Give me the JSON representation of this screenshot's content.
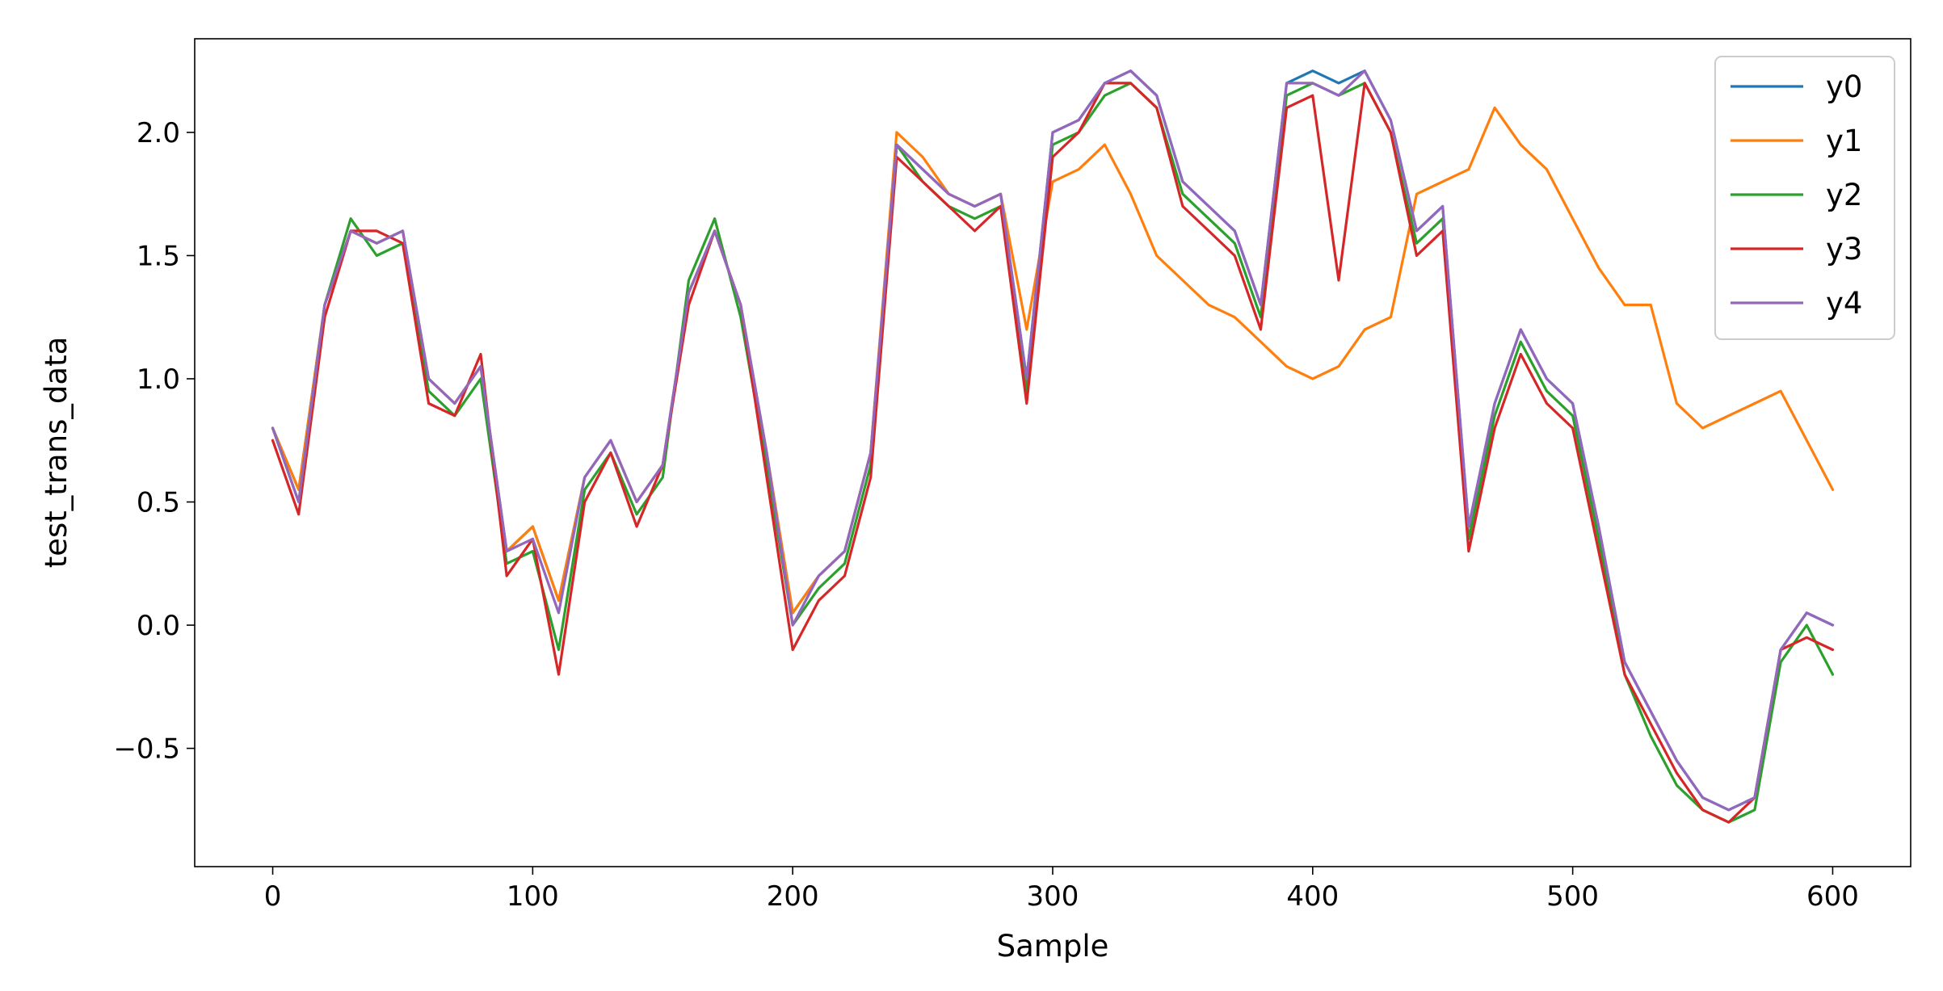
{
  "chart_data": {
    "type": "line",
    "title": "",
    "xlabel": "Sample",
    "ylabel": "test_trans_data",
    "xlim": [
      -30,
      630
    ],
    "ylim": [
      -0.98,
      2.38
    ],
    "xticks": [
      0,
      100,
      200,
      300,
      400,
      500,
      600
    ],
    "xtick_labels": [
      "0",
      "100",
      "200",
      "300",
      "400",
      "500",
      "600"
    ],
    "yticks": [
      -0.5,
      0.0,
      0.5,
      1.0,
      1.5,
      2.0
    ],
    "ytick_labels": [
      "−0.5",
      "0.0",
      "0.5",
      "1.0",
      "1.5",
      "2.0"
    ],
    "legend_position": "top-right",
    "grid": false,
    "series": [
      {
        "name": "y0",
        "color": "#1f77b4",
        "x": [
          0,
          10,
          20,
          30,
          40,
          50,
          60,
          70,
          80,
          90,
          100,
          110,
          120,
          130,
          140,
          150,
          160,
          170,
          180,
          190,
          200,
          210,
          220,
          230,
          240,
          250,
          260,
          270,
          280,
          290,
          300,
          310,
          320,
          330,
          340,
          350,
          360,
          370,
          380,
          390,
          400,
          410,
          420,
          430,
          440,
          450,
          460,
          470,
          480,
          490,
          500,
          510,
          520,
          530,
          540,
          550,
          560,
          570,
          580,
          590,
          600
        ],
        "y": [
          0.8,
          0.55,
          1.3,
          1.6,
          1.55,
          1.6,
          1.0,
          0.9,
          1.05,
          0.3,
          0.4,
          0.1,
          0.6,
          0.75,
          0.5,
          0.65,
          1.35,
          1.6,
          1.3,
          0.7,
          0.05,
          0.2,
          0.3,
          0.7,
          1.95,
          1.85,
          1.75,
          1.7,
          1.75,
          1.0,
          2.0,
          2.05,
          2.2,
          2.25,
          2.15,
          1.8,
          1.7,
          1.6,
          1.3,
          2.2,
          2.25,
          2.2,
          2.25,
          2.05,
          1.6,
          1.7,
          0.4,
          0.9,
          1.2,
          1.0,
          0.9,
          0.4,
          -0.15,
          -0.35,
          -0.55,
          -0.7,
          -0.75,
          -0.7,
          -0.1,
          0.05,
          0.0
        ]
      },
      {
        "name": "y1",
        "color": "#ff7f0e",
        "x": [
          0,
          10,
          20,
          30,
          40,
          50,
          60,
          70,
          80,
          90,
          100,
          110,
          120,
          130,
          140,
          150,
          160,
          170,
          180,
          190,
          200,
          210,
          220,
          230,
          240,
          250,
          260,
          270,
          280,
          290,
          300,
          310,
          320,
          330,
          340,
          350,
          360,
          370,
          380,
          390,
          400,
          410,
          420,
          430,
          440,
          450,
          460,
          470,
          480,
          490,
          500,
          510,
          520,
          530,
          540,
          550,
          560,
          570,
          580,
          590,
          600
        ],
        "y": [
          0.8,
          0.55,
          1.3,
          1.6,
          1.55,
          1.6,
          1.0,
          0.9,
          1.05,
          0.3,
          0.4,
          0.1,
          0.6,
          0.75,
          0.5,
          0.65,
          1.35,
          1.6,
          1.3,
          0.7,
          0.05,
          0.2,
          0.3,
          0.7,
          2.0,
          1.9,
          1.75,
          1.7,
          1.75,
          1.2,
          1.8,
          1.85,
          1.95,
          1.75,
          1.5,
          1.4,
          1.3,
          1.25,
          1.15,
          1.05,
          1.0,
          1.05,
          1.2,
          1.25,
          1.75,
          1.8,
          1.85,
          2.1,
          1.95,
          1.85,
          1.65,
          1.45,
          1.3,
          1.3,
          0.9,
          0.8,
          0.85,
          0.9,
          0.95,
          0.75,
          0.55
        ]
      },
      {
        "name": "y2",
        "color": "#2ca02c",
        "x": [
          0,
          10,
          20,
          30,
          40,
          50,
          60,
          70,
          80,
          90,
          100,
          110,
          120,
          130,
          140,
          150,
          160,
          170,
          180,
          190,
          200,
          210,
          220,
          230,
          240,
          250,
          260,
          270,
          280,
          290,
          300,
          310,
          320,
          330,
          340,
          350,
          360,
          370,
          380,
          390,
          400,
          410,
          420,
          430,
          440,
          450,
          460,
          470,
          480,
          490,
          500,
          510,
          520,
          530,
          540,
          550,
          560,
          570,
          580,
          590,
          600
        ],
        "y": [
          0.8,
          0.5,
          1.3,
          1.65,
          1.5,
          1.55,
          0.95,
          0.85,
          1.0,
          0.25,
          0.3,
          -0.1,
          0.55,
          0.7,
          0.45,
          0.6,
          1.4,
          1.65,
          1.25,
          0.65,
          0.0,
          0.15,
          0.25,
          0.65,
          1.95,
          1.8,
          1.7,
          1.65,
          1.7,
          0.95,
          1.95,
          2.0,
          2.15,
          2.2,
          2.1,
          1.75,
          1.65,
          1.55,
          1.25,
          2.15,
          2.2,
          2.15,
          2.2,
          2.0,
          1.55,
          1.65,
          0.35,
          0.85,
          1.15,
          0.95,
          0.85,
          0.35,
          -0.2,
          -0.45,
          -0.65,
          -0.75,
          -0.8,
          -0.75,
          -0.15,
          0.0,
          -0.2
        ]
      },
      {
        "name": "y3",
        "color": "#d62728",
        "x": [
          0,
          10,
          20,
          30,
          40,
          50,
          60,
          70,
          80,
          90,
          100,
          110,
          120,
          130,
          140,
          150,
          160,
          170,
          180,
          190,
          200,
          210,
          220,
          230,
          240,
          250,
          260,
          270,
          280,
          290,
          300,
          310,
          320,
          330,
          340,
          350,
          360,
          370,
          380,
          390,
          400,
          410,
          420,
          430,
          440,
          450,
          460,
          470,
          480,
          490,
          500,
          510,
          520,
          530,
          540,
          550,
          560,
          570,
          580,
          590,
          600
        ],
        "y": [
          0.75,
          0.45,
          1.25,
          1.6,
          1.6,
          1.55,
          0.9,
          0.85,
          1.1,
          0.2,
          0.35,
          -0.2,
          0.5,
          0.7,
          0.4,
          0.65,
          1.3,
          1.6,
          1.3,
          0.6,
          -0.1,
          0.1,
          0.2,
          0.6,
          1.9,
          1.8,
          1.7,
          1.6,
          1.7,
          0.9,
          1.9,
          2.0,
          2.2,
          2.2,
          2.1,
          1.7,
          1.6,
          1.5,
          1.2,
          2.1,
          2.15,
          1.4,
          2.2,
          2.0,
          1.5,
          1.6,
          0.3,
          0.8,
          1.1,
          0.9,
          0.8,
          0.3,
          -0.2,
          -0.4,
          -0.6,
          -0.75,
          -0.8,
          -0.7,
          -0.1,
          -0.05,
          -0.1
        ]
      },
      {
        "name": "y4",
        "color": "#9467bd",
        "x": [
          0,
          10,
          20,
          30,
          40,
          50,
          60,
          70,
          80,
          90,
          100,
          110,
          120,
          130,
          140,
          150,
          160,
          170,
          180,
          190,
          200,
          210,
          220,
          230,
          240,
          250,
          260,
          270,
          280,
          290,
          300,
          310,
          320,
          330,
          340,
          350,
          360,
          370,
          380,
          390,
          400,
          410,
          420,
          430,
          440,
          450,
          460,
          470,
          480,
          490,
          500,
          510,
          520,
          530,
          540,
          550,
          560,
          570,
          580,
          590,
          600
        ],
        "y": [
          0.8,
          0.5,
          1.3,
          1.6,
          1.55,
          1.6,
          1.0,
          0.9,
          1.05,
          0.3,
          0.35,
          0.05,
          0.6,
          0.75,
          0.5,
          0.65,
          1.35,
          1.6,
          1.3,
          0.7,
          0.0,
          0.2,
          0.3,
          0.7,
          1.95,
          1.85,
          1.75,
          1.7,
          1.75,
          1.0,
          2.0,
          2.05,
          2.2,
          2.25,
          2.15,
          1.8,
          1.7,
          1.6,
          1.3,
          2.2,
          2.2,
          2.15,
          2.25,
          2.05,
          1.6,
          1.7,
          0.4,
          0.9,
          1.2,
          1.0,
          0.9,
          0.4,
          -0.15,
          -0.35,
          -0.55,
          -0.7,
          -0.75,
          -0.7,
          -0.1,
          0.05,
          0.0
        ]
      }
    ]
  }
}
